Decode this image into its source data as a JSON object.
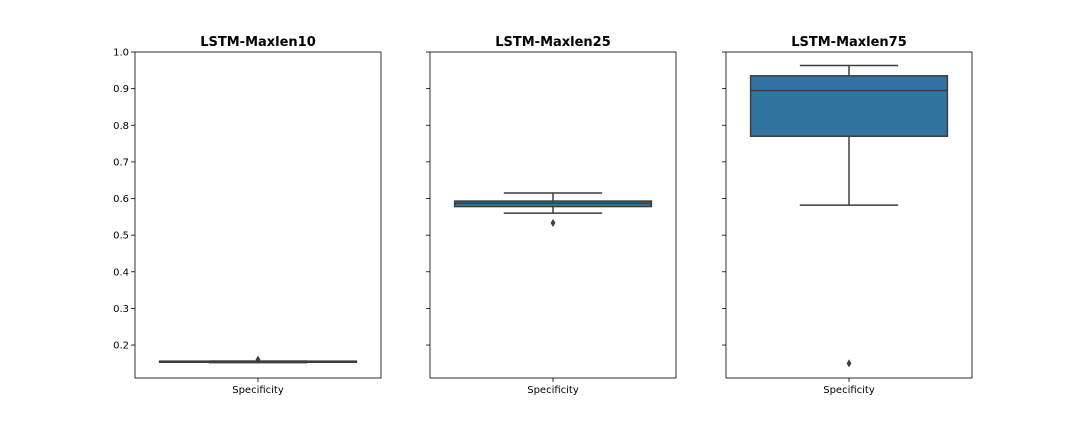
{
  "chart_data": [
    {
      "type": "box",
      "title": "LSTM-Maxlen10",
      "categories": [
        "Specificity"
      ],
      "box": {
        "whislo": 0.152,
        "q1": 0.153,
        "med": 0.155,
        "q3": 0.156,
        "whishi": 0.156,
        "fliers": [
          0.16
        ]
      },
      "ylim": [
        0.11,
        1.0
      ],
      "yticks": [
        0.2,
        0.3,
        0.4,
        0.5,
        0.6,
        0.7,
        0.8,
        0.9,
        1.0
      ],
      "ytick_labels": [
        "0.2",
        "0.3",
        "0.4",
        "0.5",
        "0.6",
        "0.7",
        "0.8",
        "0.9",
        "1.0"
      ],
      "show_ytick_labels": true,
      "color": "#3274a1"
    },
    {
      "type": "box",
      "title": "LSTM-Maxlen25",
      "categories": [
        "Specificity"
      ],
      "box": {
        "whislo": 0.56,
        "q1": 0.578,
        "med": 0.587,
        "q3": 0.593,
        "whishi": 0.615,
        "fliers": [
          0.533
        ]
      },
      "ylim": [
        0.11,
        1.0
      ],
      "yticks": [
        0.2,
        0.3,
        0.4,
        0.5,
        0.6,
        0.7,
        0.8,
        0.9,
        1.0
      ],
      "ytick_labels": [],
      "show_ytick_labels": false,
      "color": "#3274a1"
    },
    {
      "type": "box",
      "title": "LSTM-Maxlen75",
      "categories": [
        "Specificity"
      ],
      "box": {
        "whislo": 0.582,
        "q1": 0.77,
        "med": 0.895,
        "q3": 0.935,
        "whishi": 0.963,
        "fliers": [
          0.15
        ]
      },
      "ylim": [
        0.11,
        1.0
      ],
      "yticks": [
        0.2,
        0.3,
        0.4,
        0.5,
        0.6,
        0.7,
        0.8,
        0.9,
        1.0
      ],
      "ytick_labels": [],
      "show_ytick_labels": false,
      "color": "#3274a1"
    }
  ]
}
